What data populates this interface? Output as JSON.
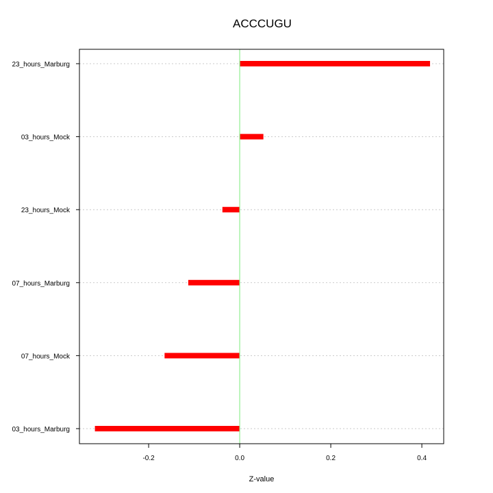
{
  "chart_data": {
    "type": "bar",
    "orientation": "horizontal",
    "title": "ACCCUGU",
    "xlabel": "Z-value",
    "ylabel": "",
    "xlim": [
      -0.352,
      0.448
    ],
    "xticks": [
      "-0.2",
      "0.0",
      "0.2",
      "0.4"
    ],
    "xtick_values": [
      -0.2,
      0.0,
      0.2,
      0.4
    ],
    "categories": [
      "03_hours_Marburg",
      "07_hours_Mock",
      "07_hours_Marburg",
      "23_hours_Mock",
      "03_hours_Mock",
      "23_hours_Marburg"
    ],
    "values": [
      -0.318,
      -0.165,
      -0.113,
      -0.038,
      0.052,
      0.418
    ],
    "grid": true,
    "bar_color": "#ff0000",
    "reference_line": {
      "value": 0,
      "color": "#90ee90"
    }
  }
}
